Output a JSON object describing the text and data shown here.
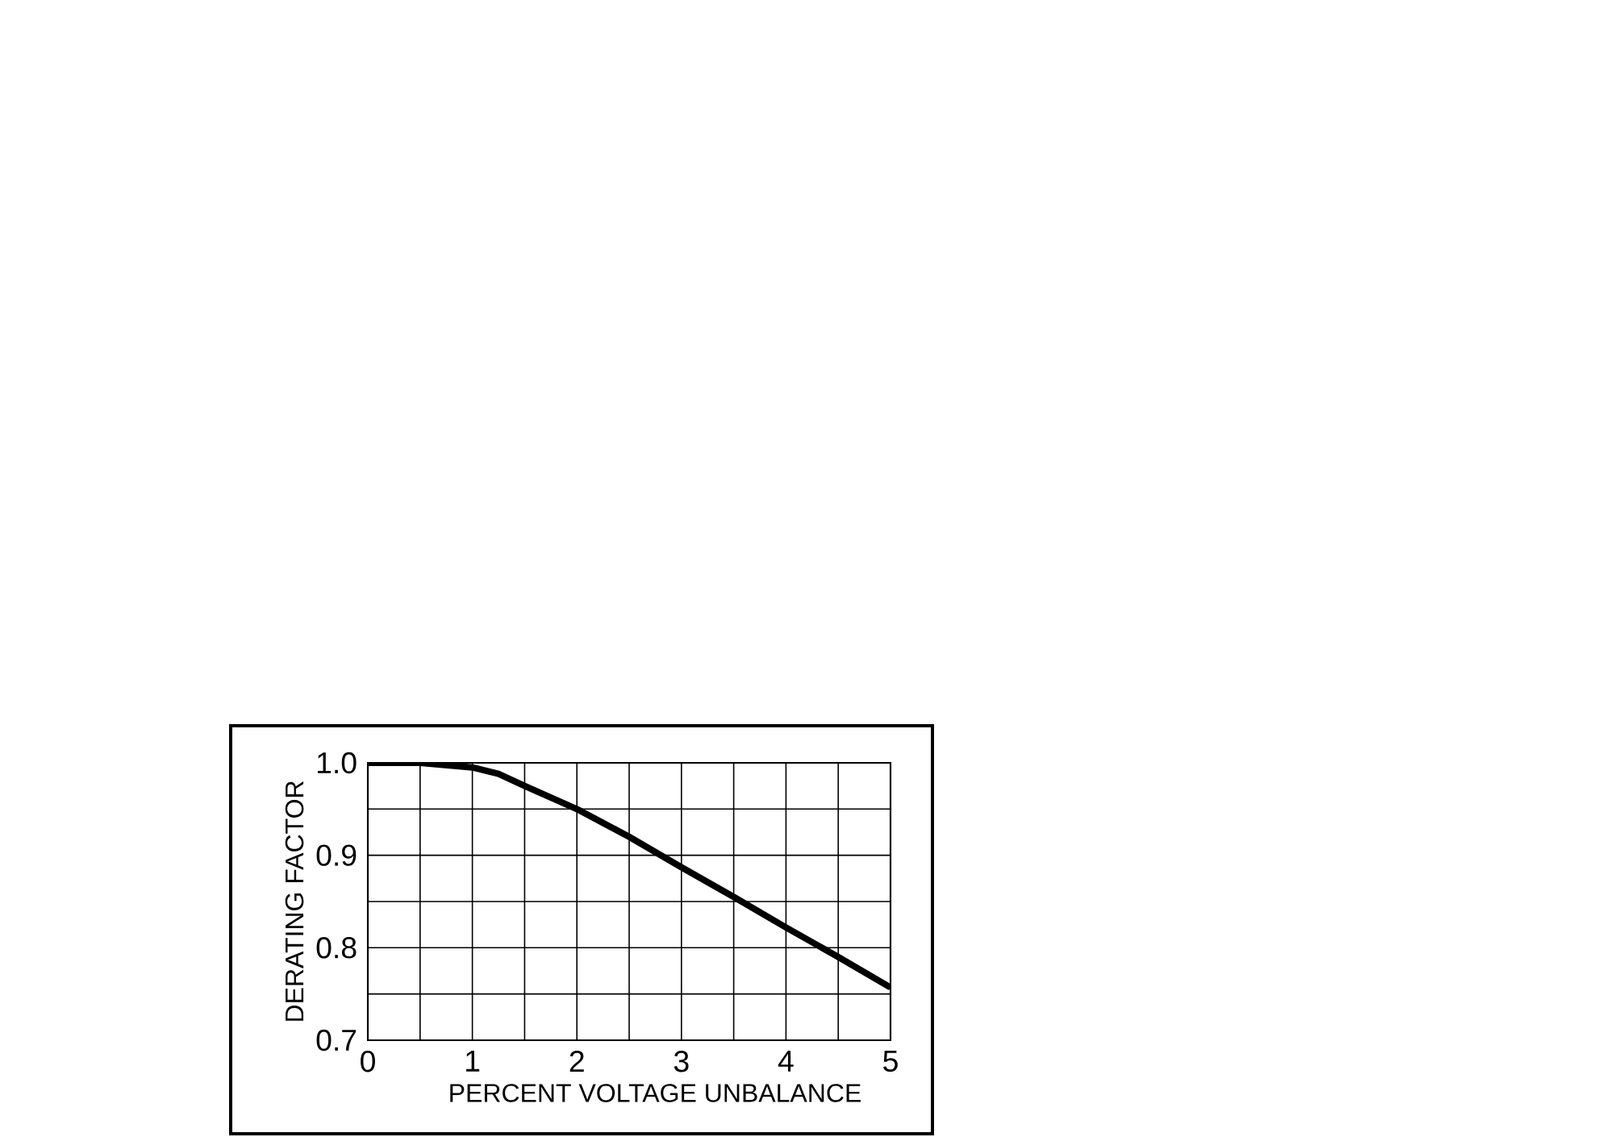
{
  "chart_data": {
    "type": "line",
    "xlabel": "PERCENT VOLTAGE UNBALANCE",
    "ylabel": "DERATING FACTOR",
    "x": [
      0,
      0.5,
      1.0,
      1.25,
      1.5,
      2.0,
      2.5,
      3.0,
      3.5,
      4.0,
      4.5,
      5.0
    ],
    "series": [
      {
        "color": "#000000",
        "values": [
          1.0,
          1.0,
          0.995,
          0.988,
          0.975,
          0.95,
          0.92,
          0.887,
          0.855,
          0.822,
          0.79,
          0.757
        ]
      }
    ],
    "xlim": [
      0,
      5
    ],
    "ylim": [
      0.7,
      1.0
    ],
    "xticks": [
      0,
      {
        "value": 0.5,
        "label": null
      },
      1,
      {
        "value": 1.5,
        "label": null
      },
      2,
      {
        "value": 2.5,
        "label": null
      },
      3,
      {
        "value": 3.5,
        "label": null
      },
      4,
      {
        "value": 4.5,
        "label": null
      },
      5
    ],
    "yticks": [
      {
        "value": 0.7,
        "label": "0.7"
      },
      {
        "value": 0.75,
        "label": null
      },
      {
        "value": 0.8,
        "label": "0.8"
      },
      {
        "value": 0.85,
        "label": null
      },
      {
        "value": 0.9,
        "label": "0.9"
      },
      {
        "value": 0.95,
        "label": null
      },
      {
        "value": 1.0,
        "label": "1.0"
      }
    ],
    "grid": true,
    "marker": "none",
    "line_style": "solid"
  }
}
